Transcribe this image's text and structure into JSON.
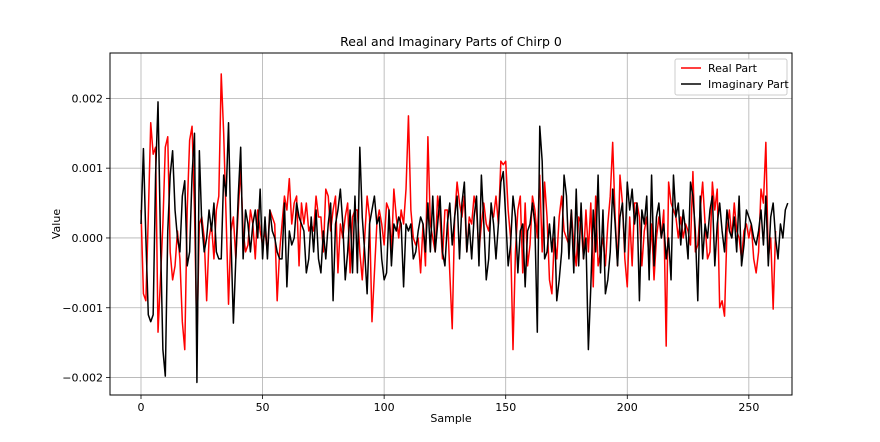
{
  "chart_data": {
    "type": "line",
    "title": "Real and Imaginary Parts of Chirp 0",
    "xlabel": "Sample",
    "ylabel": "Value",
    "xlim": [
      -12.75,
      267.75
    ],
    "ylim": [
      -0.00225,
      0.00265
    ],
    "xticks": [
      0,
      50,
      100,
      150,
      200,
      250
    ],
    "yticks": [
      -0.002,
      -0.001,
      0.0,
      0.001,
      0.002
    ],
    "xtick_labels": [
      "0",
      "50",
      "100",
      "150",
      "200",
      "250"
    ],
    "ytick_labels": [
      "−0.002",
      "−0.001",
      "0.000",
      "0.001",
      "0.002"
    ],
    "grid": true,
    "legend_position": "top-right",
    "series": [
      {
        "name": "Real Part",
        "color": "#ff0000",
        "values": [
          0.0004,
          -0.0008,
          -0.0009,
          0.0003,
          0.00165,
          0.0012,
          0.0013,
          -0.00135,
          -0.0006,
          0.0002,
          0.0013,
          0.00145,
          -0.0002,
          -0.0006,
          -0.0004,
          0.0001,
          -0.0003,
          -0.0012,
          -0.0016,
          0.0004,
          0.0014,
          0.0016,
          0.0004,
          -0.0015,
          0.0002,
          0.0003,
          0.0,
          -0.0009,
          0.0,
          0.0002,
          -0.0003,
          0.0004,
          0.0006,
          0.00235,
          0.0015,
          0.0003,
          -0.00095,
          0.0001,
          0.0003,
          -0.0003,
          0.0004,
          0.001,
          0.0001,
          -0.0002,
          -0.0001,
          0.0004,
          0.0002,
          -0.0003,
          0.0004,
          0.0001,
          -0.0001,
          0.0001,
          -0.0002,
          0.0004,
          0.0003,
          0.0002,
          -0.0009,
          -0.0002,
          0.0002,
          0.0006,
          0.0004,
          0.00085,
          0.0002,
          0.0005,
          0.0006,
          -0.0004,
          0.0005,
          0.0002,
          0.0005,
          0.0001,
          0.0002,
          0.0001,
          0.0006,
          0.0003,
          0.0003,
          -0.0002,
          0.0007,
          0.0006,
          0.0001,
          0.0004,
          0.0006,
          -0.0005,
          0.0002,
          0.0,
          0.0003,
          0.0005,
          -0.0005,
          0.0003,
          0.0004,
          0.0004,
          -0.0002,
          -0.0006,
          0.0,
          0.0006,
          0.0003,
          -0.0012,
          -0.0005,
          0.0002,
          0.0004,
          0.0002,
          -0.0001,
          0.0005,
          0.0004,
          -0.0002,
          0.0007,
          0.0003,
          0.0,
          0.0004,
          0.0002,
          0.0007,
          0.00175,
          0.0004,
          0.0,
          -0.0001,
          0.0,
          -0.0005,
          0.0002,
          -0.0004,
          0.00145,
          0.0002,
          0.0,
          -0.0002,
          0.0006,
          0.0003,
          -0.0003,
          0.0004,
          0.0004,
          -0.0005,
          -0.0013,
          0.0003,
          0.0008,
          0.0005,
          0.0003,
          0.0006,
          -0.0002,
          0.0003,
          0.0002,
          0.0006,
          0.0004,
          -0.0002,
          0.0002,
          0.0005,
          0.0002,
          0.0001,
          0.0004,
          0.0003,
          0.0006,
          0.0002,
          0.0011,
          0.00105,
          0.0011,
          0.0004,
          0.0,
          -0.0016,
          -0.0002,
          0.0004,
          0.0006,
          -0.0005,
          0.0005,
          -0.0004,
          -0.0001,
          0.0006,
          0.0004,
          0.0,
          0.0009,
          -0.0002,
          0.0008,
          0.0003,
          -0.0006,
          -0.0008,
          0.0,
          -0.0003,
          0.0003,
          0.0006,
          0.0001,
          0.0,
          -0.0001,
          0.0004,
          -0.0001,
          -0.0004,
          0.0003,
          0.0002,
          -0.0003,
          0.0004,
          -0.0002,
          0.0005,
          -0.0007,
          0.0006,
          -0.0004,
          -0.0002,
          0.0,
          -0.0004,
          0.0002,
          0.0006,
          0.00137,
          0.0003,
          -0.0004,
          0.0009,
          0.0005,
          -0.0003,
          -0.0007,
          0.0003,
          -0.0004,
          0.0005,
          0.0005,
          0.0003,
          -0.0004,
          0.0001,
          0.0003,
          -0.0004,
          0.0002,
          -0.0006,
          0.0,
          0.0003,
          0.0,
          0.0004,
          -0.00155,
          0.0008,
          0.0005,
          0.0004,
          0.0003,
          0.0,
          0.0003,
          0.0,
          0.0002,
          0.0001,
          -0.0001,
          0.00095,
          -0.0002,
          -0.0001,
          0.0004,
          0.0008,
          0.0002,
          -0.0003,
          -0.0002,
          0.0008,
          0.0004,
          0.0007,
          -0.001,
          -0.0009,
          -0.00112,
          0.0001,
          0.0004,
          0.0,
          0.0005,
          0.0001,
          0.0,
          -0.0003,
          0.0001,
          0.0002,
          0.0,
          0.0002,
          -0.0003,
          -0.0005,
          -0.0002,
          0.0007,
          0.0005,
          0.00137,
          -0.0003,
          0.0,
          -0.00102,
          0.0001
        ]
      },
      {
        "name": "Imaginary Part",
        "color": "#000000",
        "values": [
          0.0002,
          0.00128,
          0.0,
          -0.0011,
          -0.0012,
          -0.0011,
          0.0009,
          0.00195,
          0.0,
          -0.0016,
          -0.00198,
          0.0001,
          0.0009,
          0.00125,
          0.0004,
          0.0,
          -0.0002,
          0.0006,
          0.00082,
          -0.0004,
          -0.0002,
          0.0009,
          0.0015,
          -0.00207,
          0.00125,
          0.0002,
          -0.0002,
          0.0,
          0.0004,
          0.0001,
          0.0005,
          -0.0002,
          -0.0003,
          -0.0003,
          0.0009,
          0.0006,
          0.00165,
          0.0,
          -0.00122,
          -0.0003,
          0.0006,
          0.0013,
          -0.0003,
          0.0004,
          0.0002,
          -0.0002,
          0.0002,
          0.0004,
          0.0,
          0.0007,
          -0.0003,
          0.0003,
          -0.0003,
          0.0004,
          0.0001,
          0.0,
          -0.0002,
          -0.0003,
          -0.0003,
          0.0005,
          -0.0007,
          0.0001,
          -0.0001,
          0.0,
          0.0005,
          0.0003,
          0.0002,
          0.0001,
          -0.0005,
          -0.0003,
          0.0003,
          -0.0002,
          0.0004,
          -0.0003,
          -0.0005,
          0.0001,
          -0.0003,
          0.0002,
          0.0005,
          -0.0009,
          0.0002,
          0.0004,
          0.0007,
          0.0002,
          -0.0006,
          -0.0002,
          0.0004,
          -0.0005,
          0.0006,
          -0.0005,
          0.0013,
          0.0003,
          -0.0002,
          -0.0008,
          0.0002,
          0.0004,
          0.0006,
          0.0002,
          0.0003,
          -0.0003,
          -0.0006,
          -0.0005,
          0.0004,
          -0.0004,
          0.0002,
          0.0001,
          0.0003,
          0.0002,
          -0.0007,
          0.0002,
          0.0001,
          0.0002,
          -0.0003,
          -0.0002,
          0.0001,
          0.0003,
          0.0002,
          -0.0002,
          0.0005,
          -0.0002,
          0.0006,
          -0.0002,
          0.0002,
          0.0006,
          -0.0002,
          -0.0004,
          0.0002,
          0.0005,
          -0.0001,
          0.0003,
          0.0006,
          -0.0003,
          0.0005,
          0.0008,
          -0.0002,
          0.0002,
          -0.0003,
          0.0003,
          0.0006,
          -0.0004,
          0.0009,
          0.0002,
          -0.0006,
          -0.0003,
          0.0005,
          0.0002,
          -0.0003,
          0.0002,
          0.0008,
          0.00095,
          0.0003,
          -0.0004,
          -0.0001,
          0.0006,
          0.0003,
          -0.0005,
          0.0001,
          0.0002,
          -0.0007,
          0.0001,
          0.0002,
          0.0005,
          0.0002,
          -0.00135,
          0.0016,
          0.0011,
          -0.0003,
          -0.0002,
          0.0002,
          -0.0002,
          0.0003,
          -0.0009,
          -0.0006,
          -0.0002,
          0.0009,
          0.0006,
          -0.0003,
          0.0004,
          -0.0005,
          0.0007,
          -0.0004,
          0.0005,
          -0.0003,
          0.0,
          -0.0016,
          -0.0007,
          0.0004,
          -0.0002,
          0.0009,
          -0.0005,
          0.0004,
          -0.0008,
          -0.0006,
          -0.0002,
          0.0007,
          0.0002,
          -0.0004,
          0.0003,
          0.0005,
          -0.0002,
          0.0008,
          0.0004,
          0.0007,
          0.0002,
          0.0005,
          -0.0009,
          0.0004,
          0.0002,
          0.0006,
          -0.0006,
          0.0009,
          -0.0004,
          0.0003,
          0.0005,
          0.0,
          0.0002,
          -0.0003,
          0.0,
          -0.0006,
          0.0009,
          0.0003,
          0.0005,
          -0.0001,
          0.0004,
          0.0001,
          -0.0003,
          0.0008,
          0.0006,
          0.0001,
          -0.0009,
          0.0006,
          -0.0003,
          0.0002,
          0.0,
          0.0004,
          0.0006,
          -0.0004,
          0.0002,
          0.0005,
          0.0001,
          -0.0002,
          0.0004,
          0.0001,
          0.0,
          0.0003,
          -0.0002,
          0.0006,
          -0.0004,
          -0.0001,
          0.0004,
          0.0003,
          0.0002,
          0.0,
          -0.0001,
          0.0001,
          0.0004,
          -0.0001,
          0.0006,
          -0.0004,
          0.0003,
          0.0005,
          0.0,
          -0.0003,
          0.0002,
          0.0,
          0.0004,
          0.0005
        ]
      }
    ]
  }
}
